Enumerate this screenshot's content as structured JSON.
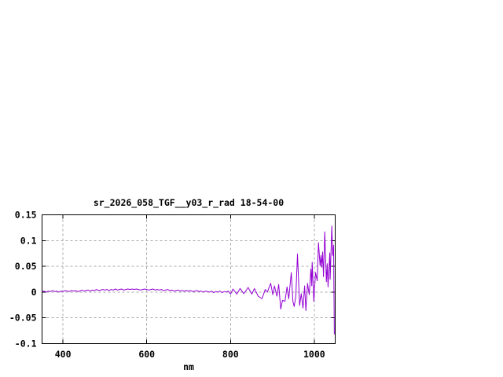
{
  "page": {
    "background": "#ffffff"
  },
  "chart_data": {
    "type": "line",
    "title": "sr_2026_058_TGF__y03_r_rad 18-54-00",
    "xlabel": "nm",
    "ylabel": "",
    "xlim": [
      350,
      1050
    ],
    "ylim": [
      -0.1,
      0.15
    ],
    "grid": true,
    "legend": "none",
    "xticks": {
      "values": [
        400,
        600,
        800,
        1000
      ],
      "labels": [
        "400",
        "600",
        "800",
        "1000"
      ]
    },
    "yticks": {
      "values": [
        0.15,
        0.1,
        0.05,
        0,
        -0.05,
        -0.1
      ],
      "labels": [
        "0.15",
        "0.1",
        "0.05",
        "0",
        "-0.05",
        "-0.1"
      ]
    },
    "colors": {
      "line": "#9400d3",
      "grid": "#a8a8a8",
      "axis": "#000000",
      "text": "#000000"
    },
    "series": [
      {
        "name": "sr_2026_058_TGF__y03_r_rad",
        "x": [
          350,
          355,
          360,
          365,
          370,
          375,
          380,
          385,
          390,
          395,
          400,
          405,
          410,
          415,
          420,
          425,
          430,
          435,
          440,
          445,
          450,
          455,
          460,
          465,
          470,
          475,
          480,
          485,
          490,
          495,
          500,
          505,
          510,
          515,
          520,
          525,
          530,
          535,
          540,
          545,
          550,
          555,
          560,
          565,
          570,
          575,
          580,
          585,
          590,
          595,
          600,
          605,
          610,
          615,
          620,
          625,
          630,
          635,
          640,
          645,
          650,
          655,
          660,
          665,
          670,
          675,
          680,
          685,
          690,
          695,
          700,
          705,
          710,
          715,
          720,
          725,
          730,
          735,
          740,
          745,
          750,
          755,
          760,
          765,
          770,
          775,
          780,
          785,
          790,
          795,
          800,
          806,
          815,
          823,
          832,
          842,
          851,
          857,
          866,
          875,
          883,
          888,
          896,
          901,
          905,
          911,
          915,
          920,
          924,
          930,
          935,
          939,
          945,
          949,
          952,
          956,
          960,
          965,
          969,
          973,
          977,
          980,
          984,
          988,
          992,
          994,
          995,
          999,
          1003,
          1007,
          1010,
          1014,
          1016,
          1018,
          1020,
          1022,
          1025,
          1029,
          1031,
          1033,
          1037,
          1038,
          1042,
          1044,
          1046,
          1048
        ],
        "y": [
          0.001,
          0.002,
          0.0,
          0.002,
          0.001,
          0.003,
          0.001,
          0.002,
          0.0,
          0.002,
          0.001,
          0.003,
          0.002,
          0.001,
          0.003,
          0.002,
          0.003,
          0.001,
          0.002,
          0.004,
          0.002,
          0.003,
          0.004,
          0.002,
          0.004,
          0.003,
          0.005,
          0.003,
          0.004,
          0.005,
          0.004,
          0.005,
          0.003,
          0.005,
          0.004,
          0.006,
          0.004,
          0.005,
          0.006,
          0.004,
          0.005,
          0.006,
          0.005,
          0.006,
          0.005,
          0.006,
          0.005,
          0.004,
          0.005,
          0.006,
          0.005,
          0.004,
          0.005,
          0.006,
          0.004,
          0.005,
          0.004,
          0.005,
          0.003,
          0.004,
          0.005,
          0.003,
          0.004,
          0.002,
          0.003,
          0.004,
          0.002,
          0.003,
          0.002,
          0.003,
          0.002,
          0.003,
          0.001,
          0.002,
          0.003,
          0.001,
          0.002,
          0.0,
          0.002,
          0.001,
          0.0,
          0.002,
          -0.001,
          0.001,
          0.0,
          0.002,
          -0.001,
          0.001,
          0.0,
          0.002,
          -0.004,
          0.006,
          -0.004,
          0.007,
          -0.003,
          0.009,
          -0.004,
          0.007,
          -0.008,
          -0.013,
          0.005,
          0.0,
          0.017,
          -0.005,
          0.012,
          -0.008,
          0.015,
          -0.033,
          -0.016,
          -0.018,
          0.01,
          -0.013,
          0.038,
          -0.018,
          -0.028,
          -0.008,
          0.074,
          -0.026,
          -0.003,
          -0.031,
          0.012,
          -0.036,
          0.017,
          -0.005,
          0.045,
          0.012,
          0.058,
          -0.018,
          0.038,
          0.022,
          0.096,
          0.051,
          0.071,
          0.048,
          0.078,
          0.03,
          0.117,
          0.02,
          0.055,
          0.01,
          0.076,
          0.025,
          0.128,
          0.071,
          0.091,
          -0.082
        ]
      }
    ]
  }
}
